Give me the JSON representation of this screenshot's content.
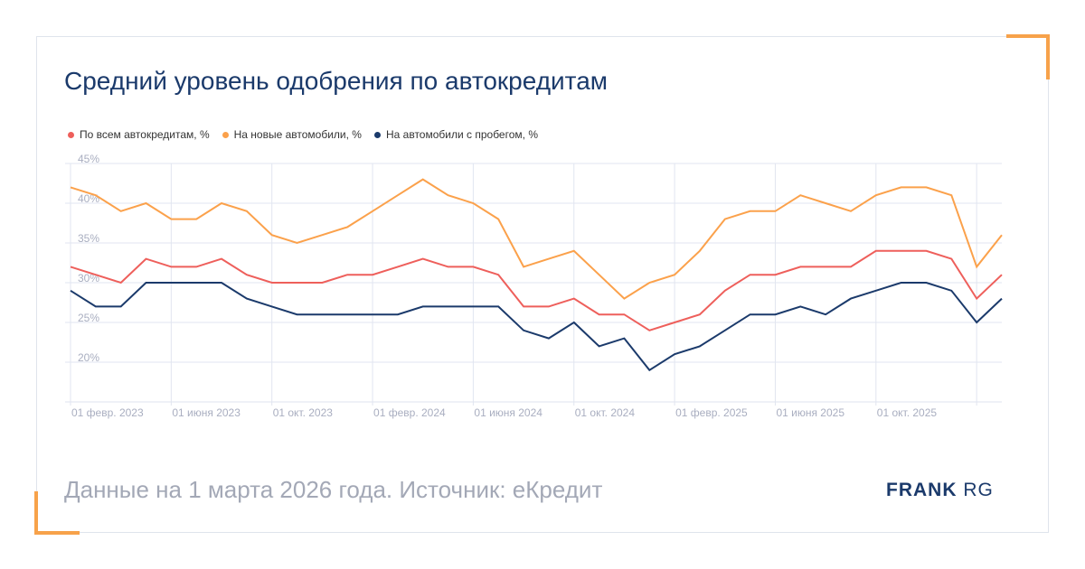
{
  "title": "Средний уровень одобрения по автокредитам",
  "footer": "Данные на 1 марта 2026 года. Источник: еКредит",
  "logo": {
    "bold": "FRANK",
    "light": "RG"
  },
  "chart_data": {
    "type": "line",
    "title": "Средний уровень одобрения по автокредитам",
    "xlabel": "",
    "ylabel": "",
    "ylim": [
      15,
      45
    ],
    "yticks": [
      20,
      25,
      30,
      35,
      40,
      45
    ],
    "ytick_labels": [
      "20%",
      "25%",
      "30%",
      "35%",
      "40%",
      "45%"
    ],
    "x_start": "2023-02",
    "x_end": "2026-03",
    "x_step": "month",
    "xtick_labels": [
      "01 февр. 2023",
      "01 июня 2023",
      "01 окт. 2023",
      "01 февр. 2024",
      "01 июня 2024",
      "01 окт. 2024",
      "01 февр. 2025",
      "01 июня 2025",
      "01 окт. 2025"
    ],
    "grid": true,
    "legend_position": "top-left",
    "series": [
      {
        "name": "По всем автокредитам, %",
        "color": "#ee5f5b",
        "values": [
          32,
          31,
          30,
          33,
          32,
          32,
          33,
          31,
          30,
          30,
          30,
          31,
          31,
          32,
          33,
          32,
          32,
          31,
          27,
          27,
          28,
          26,
          26,
          24,
          25,
          26,
          29,
          31,
          31,
          32,
          32,
          32,
          34,
          34,
          34,
          33,
          28,
          31
        ]
      },
      {
        "name": "На новые автомобили, %",
        "color": "#fba14b",
        "values": [
          42,
          41,
          39,
          40,
          38,
          38,
          40,
          39,
          36,
          35,
          36,
          37,
          39,
          41,
          43,
          41,
          40,
          38,
          32,
          33,
          34,
          31,
          28,
          30,
          31,
          34,
          38,
          39,
          39,
          41,
          40,
          39,
          41,
          42,
          42,
          41,
          32,
          36
        ]
      },
      {
        "name": "На автомобили с пробегом, %",
        "color": "#1b3a6b",
        "values": [
          29,
          27,
          27,
          30,
          30,
          30,
          30,
          28,
          27,
          26,
          26,
          26,
          26,
          26,
          27,
          27,
          27,
          27,
          24,
          23,
          25,
          22,
          23,
          19,
          21,
          22,
          24,
          26,
          26,
          27,
          26,
          28,
          29,
          30,
          30,
          29,
          25,
          28
        ]
      }
    ]
  }
}
